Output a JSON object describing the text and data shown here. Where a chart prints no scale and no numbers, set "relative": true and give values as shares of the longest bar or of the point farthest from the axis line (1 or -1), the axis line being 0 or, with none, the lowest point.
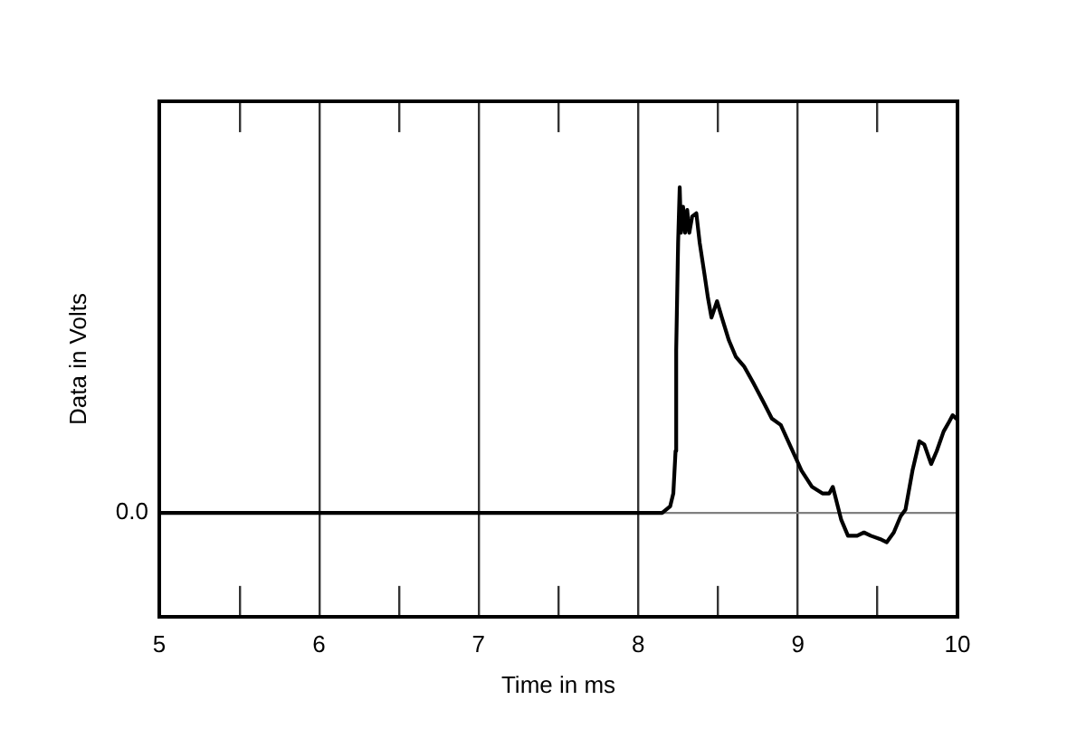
{
  "chart_data": {
    "type": "line",
    "xlabel": "Time in ms",
    "ylabel": "Data in Volts",
    "relative": true,
    "xlim": [
      5,
      10
    ],
    "xticks": [
      5,
      {
        "value": 5.5,
        "label": null
      },
      6,
      {
        "value": 6.5,
        "label": null
      },
      7,
      {
        "value": 7.5,
        "label": null
      },
      8,
      {
        "value": 8.5,
        "label": null
      },
      9,
      {
        "value": 9.5,
        "label": null
      },
      10
    ],
    "grid": "x",
    "marker": "none",
    "line_style": "solid",
    "ref_lines": [
      {
        "axis": "y",
        "value": 0,
        "label": "0.0",
        "color": "#808080"
      }
    ],
    "series": [
      {
        "color": "#000000",
        "x": [
          5,
          8.15,
          8.2,
          8.22,
          8.234,
          8.238,
          8.25,
          8.26,
          8.268,
          8.281,
          8.294,
          8.307,
          8.32,
          8.338,
          8.364,
          8.385,
          8.416,
          8.437,
          8.459,
          8.494,
          8.524,
          8.568,
          8.611,
          8.663,
          8.72,
          8.785,
          8.837,
          8.893,
          8.958,
          9.023,
          9.089,
          9.154,
          9.197,
          9.219,
          9.24,
          9.271,
          9.314,
          9.371,
          9.414,
          9.457,
          9.514,
          9.557,
          9.601,
          9.644,
          9.674,
          9.718,
          9.761,
          9.792,
          9.835,
          9.87,
          9.913,
          9.948,
          9.97,
          9.991
        ],
        "values": [
          0,
          0,
          0.02,
          0.06,
          0.19,
          0.5,
          0.83,
          1,
          0.86,
          0.94,
          0.86,
          0.93,
          0.86,
          0.91,
          0.92,
          0.83,
          0.73,
          0.66,
          0.6,
          0.65,
          0.6,
          0.53,
          0.48,
          0.45,
          0.4,
          0.34,
          0.29,
          0.27,
          0.2,
          0.13,
          0.08,
          0.06,
          0.06,
          0.08,
          0.04,
          -0.02,
          -0.07,
          -0.07,
          -0.06,
          -0.07,
          -0.08,
          -0.09,
          -0.06,
          -0.01,
          0.01,
          0.13,
          0.22,
          0.21,
          0.15,
          0.19,
          0.25,
          0.28,
          0.3,
          0.29
        ]
      }
    ]
  }
}
